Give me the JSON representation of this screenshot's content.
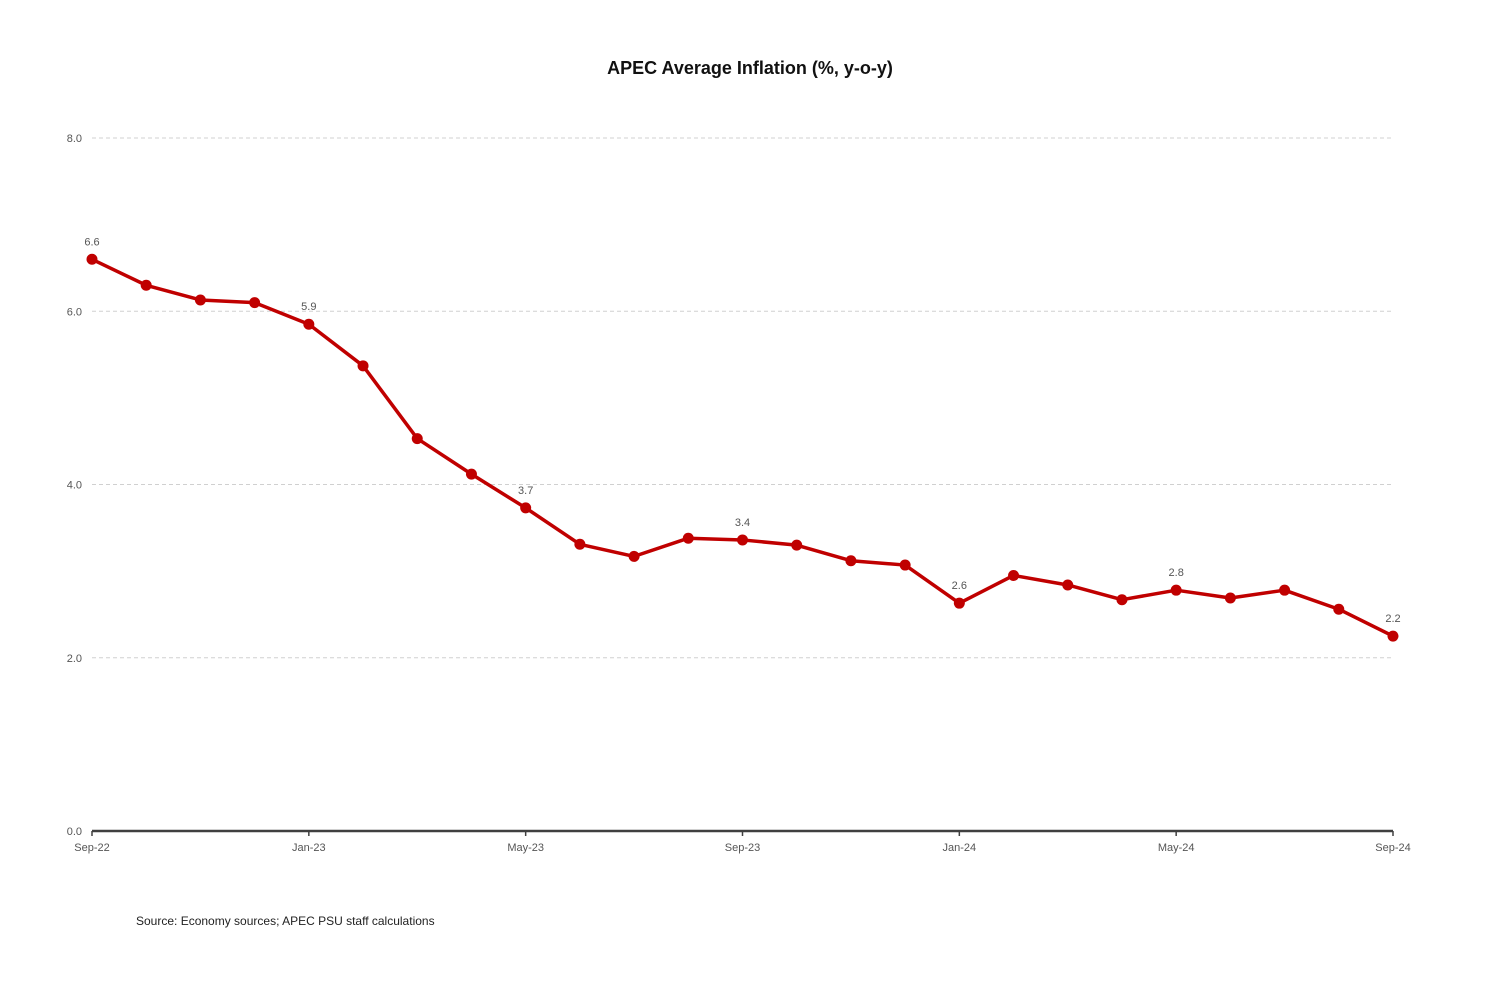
{
  "chart_data": {
    "type": "line",
    "title": "APEC Average Inflation (%, y-o-y)",
    "xlabel": "",
    "ylabel": "",
    "ylim": [
      0,
      8
    ],
    "y_ticks": [
      "0.0",
      "2.0",
      "4.0",
      "6.0",
      "8.0"
    ],
    "grid": "horizontal dashed",
    "legend": "none",
    "x": [
      "Sep-22",
      "Oct-22",
      "Nov-22",
      "Dec-22",
      "Jan-23",
      "Feb-23",
      "Mar-23",
      "Apr-23",
      "May-23",
      "Jun-23",
      "Jul-23",
      "Aug-23",
      "Sep-23",
      "Oct-23",
      "Nov-23",
      "Dec-23",
      "Jan-24",
      "Feb-24",
      "Mar-24",
      "Apr-24",
      "May-24",
      "Jun-24",
      "Jul-24",
      "Aug-24",
      "Sep-24"
    ],
    "x_tick_labels": [
      "Sep-22",
      "Jan-23",
      "May-23",
      "Sep-23",
      "Jan-24",
      "May-24",
      "Sep-24"
    ],
    "series": [
      {
        "values": [
          6.6,
          6.3,
          6.13,
          6.1,
          5.85,
          5.37,
          4.53,
          4.12,
          3.73,
          3.31,
          3.17,
          3.38,
          3.36,
          3.3,
          3.12,
          3.07,
          2.63,
          2.95,
          2.84,
          2.67,
          2.78,
          2.69,
          2.78,
          2.56,
          2.25
        ],
        "color": "#c00000"
      }
    ],
    "data_labels": [
      {
        "x": "Sep-22",
        "text": "6.6"
      },
      {
        "x": "Jan-23",
        "text": "5.9"
      },
      {
        "x": "May-23",
        "text": "3.7"
      },
      {
        "x": "Sep-23",
        "text": "3.4"
      },
      {
        "x": "Jan-24",
        "text": "2.6"
      },
      {
        "x": "May-24",
        "text": "2.8"
      },
      {
        "x": "Sep-24",
        "text": "2.2"
      }
    ]
  },
  "source_note": "Source: Economy sources; APEC PSU staff calculations"
}
